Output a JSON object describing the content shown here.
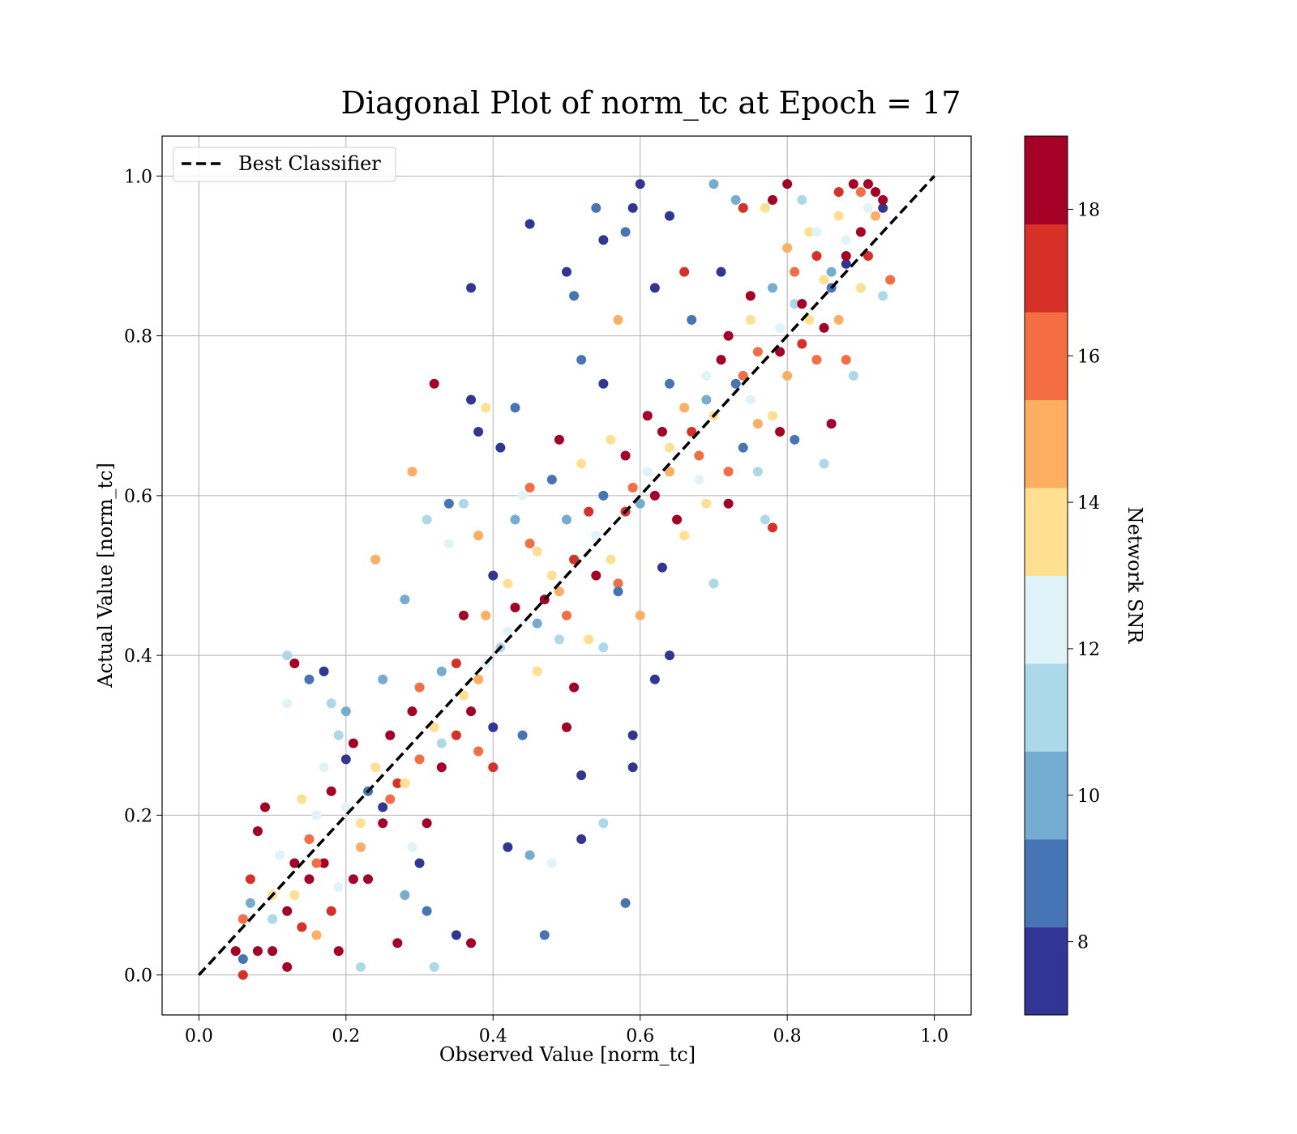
{
  "chart_data": {
    "type": "scatter",
    "title": "Diagonal Plot of norm_tc at Epoch = 17",
    "xlabel": "Observed Value [norm_tc]",
    "ylabel": "Actual Value [norm_tc]",
    "xlim": [
      -0.05,
      1.05
    ],
    "ylim": [
      -0.05,
      1.05
    ],
    "xticks": [
      "0.0",
      "0.2",
      "0.4",
      "0.6",
      "0.8",
      "1.0"
    ],
    "yticks": [
      "0.0",
      "0.2",
      "0.4",
      "0.6",
      "0.8",
      "1.0"
    ],
    "grid": true,
    "legend": {
      "position": "top-left",
      "label": "Best Classifier"
    },
    "reference_line": {
      "style": "dashed",
      "color": "#000000",
      "x": [
        0,
        1
      ],
      "y": [
        0,
        1
      ]
    },
    "colorbar": {
      "label": "Network SNR",
      "range": [
        7,
        19
      ],
      "ticks": [
        "8",
        "10",
        "12",
        "14",
        "16",
        "18"
      ],
      "colors": [
        "#313695",
        "#4575b4",
        "#74add1",
        "#abd9e9",
        "#e0f3f8",
        "#fee090",
        "#fdae61",
        "#f46d43",
        "#d73027",
        "#a50026"
      ]
    },
    "points_note": "representative sample of scattered points",
    "points": [
      [
        0.06,
        0.0,
        17
      ],
      [
        0.06,
        0.02,
        9
      ],
      [
        0.05,
        0.03,
        19
      ],
      [
        0.06,
        0.07,
        16
      ],
      [
        0.07,
        0.12,
        17
      ],
      [
        0.08,
        0.18,
        19
      ],
      [
        0.09,
        0.21,
        18
      ],
      [
        0.07,
        0.09,
        10
      ],
      [
        0.08,
        0.03,
        19
      ],
      [
        0.1,
        0.03,
        19
      ],
      [
        0.1,
        0.1,
        14
      ],
      [
        0.11,
        0.15,
        12
      ],
      [
        0.12,
        0.08,
        18
      ],
      [
        0.12,
        0.01,
        19
      ],
      [
        0.13,
        0.14,
        19
      ],
      [
        0.13,
        0.39,
        18
      ],
      [
        0.12,
        0.4,
        11
      ],
      [
        0.14,
        0.06,
        17
      ],
      [
        0.15,
        0.12,
        19
      ],
      [
        0.15,
        0.17,
        16
      ],
      [
        0.16,
        0.05,
        15
      ],
      [
        0.16,
        0.2,
        12
      ],
      [
        0.17,
        0.38,
        8
      ],
      [
        0.17,
        0.14,
        18
      ],
      [
        0.18,
        0.08,
        17
      ],
      [
        0.18,
        0.23,
        19
      ],
      [
        0.19,
        0.03,
        18
      ],
      [
        0.19,
        0.3,
        11
      ],
      [
        0.2,
        0.27,
        8
      ],
      [
        0.2,
        0.21,
        12
      ],
      [
        0.21,
        0.12,
        19
      ],
      [
        0.21,
        0.29,
        19
      ],
      [
        0.22,
        0.01,
        11
      ],
      [
        0.23,
        0.23,
        9
      ],
      [
        0.23,
        0.12,
        19
      ],
      [
        0.24,
        0.26,
        13
      ],
      [
        0.25,
        0.21,
        8
      ],
      [
        0.25,
        0.37,
        10
      ],
      [
        0.26,
        0.3,
        19
      ],
      [
        0.27,
        0.04,
        19
      ],
      [
        0.27,
        0.24,
        17
      ],
      [
        0.28,
        0.1,
        10
      ],
      [
        0.29,
        0.33,
        19
      ],
      [
        0.29,
        0.63,
        15
      ],
      [
        0.3,
        0.14,
        8
      ],
      [
        0.3,
        0.36,
        16
      ],
      [
        0.31,
        0.19,
        19
      ],
      [
        0.31,
        0.08,
        9
      ],
      [
        0.32,
        0.74,
        19
      ],
      [
        0.32,
        0.01,
        11
      ],
      [
        0.33,
        0.26,
        18
      ],
      [
        0.33,
        0.38,
        10
      ],
      [
        0.34,
        0.59,
        9
      ],
      [
        0.35,
        0.05,
        8
      ],
      [
        0.35,
        0.3,
        17
      ],
      [
        0.36,
        0.45,
        19
      ],
      [
        0.36,
        0.59,
        11
      ],
      [
        0.37,
        0.86,
        8
      ],
      [
        0.37,
        0.72,
        8
      ],
      [
        0.37,
        0.04,
        18
      ],
      [
        0.38,
        0.28,
        16
      ],
      [
        0.38,
        0.68,
        8
      ],
      [
        0.39,
        0.39,
        12
      ],
      [
        0.39,
        0.71,
        13
      ],
      [
        0.4,
        0.26,
        17
      ],
      [
        0.4,
        0.5,
        8
      ],
      [
        0.41,
        0.66,
        8
      ],
      [
        0.42,
        0.16,
        8
      ],
      [
        0.42,
        0.43,
        12
      ],
      [
        0.43,
        0.57,
        10
      ],
      [
        0.43,
        0.71,
        9
      ],
      [
        0.44,
        0.3,
        9
      ],
      [
        0.45,
        0.15,
        10
      ],
      [
        0.45,
        0.94,
        8
      ],
      [
        0.45,
        0.61,
        16
      ],
      [
        0.46,
        0.53,
        13
      ],
      [
        0.47,
        0.47,
        19
      ],
      [
        0.47,
        0.05,
        9
      ],
      [
        0.48,
        0.62,
        9
      ],
      [
        0.48,
        0.14,
        12
      ],
      [
        0.49,
        0.67,
        18
      ],
      [
        0.5,
        0.88,
        8
      ],
      [
        0.5,
        0.45,
        16
      ],
      [
        0.51,
        0.85,
        9
      ],
      [
        0.51,
        0.36,
        19
      ],
      [
        0.52,
        0.17,
        8
      ],
      [
        0.52,
        0.25,
        8
      ],
      [
        0.52,
        0.77,
        9
      ],
      [
        0.53,
        0.58,
        17
      ],
      [
        0.54,
        0.96,
        9
      ],
      [
        0.54,
        0.5,
        19
      ],
      [
        0.55,
        0.74,
        8
      ],
      [
        0.55,
        0.92,
        8
      ],
      [
        0.55,
        0.19,
        11
      ],
      [
        0.56,
        0.67,
        13
      ],
      [
        0.57,
        0.49,
        16
      ],
      [
        0.57,
        0.82,
        15
      ],
      [
        0.58,
        0.93,
        9
      ],
      [
        0.58,
        0.09,
        9
      ],
      [
        0.58,
        0.65,
        19
      ],
      [
        0.59,
        0.26,
        8
      ],
      [
        0.59,
        0.3,
        8
      ],
      [
        0.59,
        0.96,
        8
      ],
      [
        0.6,
        0.99,
        8
      ],
      [
        0.6,
        0.59,
        10
      ],
      [
        0.61,
        0.7,
        18
      ],
      [
        0.62,
        0.37,
        8
      ],
      [
        0.62,
        0.86,
        8
      ],
      [
        0.63,
        0.68,
        19
      ],
      [
        0.64,
        0.95,
        8
      ],
      [
        0.64,
        0.4,
        8
      ],
      [
        0.64,
        0.74,
        9
      ],
      [
        0.65,
        0.57,
        18
      ],
      [
        0.66,
        0.88,
        17
      ],
      [
        0.67,
        0.82,
        9
      ],
      [
        0.68,
        0.62,
        12
      ],
      [
        0.68,
        0.65,
        16
      ],
      [
        0.69,
        0.72,
        10
      ],
      [
        0.7,
        0.99,
        10
      ],
      [
        0.7,
        0.49,
        11
      ],
      [
        0.71,
        0.88,
        8
      ],
      [
        0.71,
        0.77,
        19
      ],
      [
        0.72,
        0.59,
        18
      ],
      [
        0.73,
        0.97,
        10
      ],
      [
        0.74,
        0.75,
        16
      ],
      [
        0.74,
        0.96,
        17
      ],
      [
        0.75,
        0.72,
        12
      ],
      [
        0.75,
        0.85,
        19
      ],
      [
        0.76,
        0.69,
        15
      ],
      [
        0.77,
        0.57,
        11
      ],
      [
        0.77,
        0.96,
        14
      ],
      [
        0.78,
        0.56,
        17
      ],
      [
        0.78,
        0.97,
        19
      ],
      [
        0.79,
        0.68,
        18
      ],
      [
        0.79,
        0.78,
        18
      ],
      [
        0.8,
        0.99,
        19
      ],
      [
        0.8,
        0.91,
        15
      ],
      [
        0.81,
        0.67,
        9
      ],
      [
        0.81,
        0.84,
        11
      ],
      [
        0.82,
        0.97,
        11
      ],
      [
        0.82,
        0.79,
        17
      ],
      [
        0.83,
        0.93,
        14
      ],
      [
        0.84,
        0.9,
        17
      ],
      [
        0.84,
        0.77,
        16
      ],
      [
        0.85,
        0.64,
        11
      ],
      [
        0.85,
        0.81,
        18
      ],
      [
        0.86,
        0.69,
        19
      ],
      [
        0.86,
        0.86,
        9
      ],
      [
        0.87,
        0.98,
        17
      ],
      [
        0.87,
        0.82,
        15
      ],
      [
        0.88,
        0.89,
        8
      ],
      [
        0.88,
        0.77,
        16
      ],
      [
        0.89,
        0.75,
        11
      ],
      [
        0.89,
        0.99,
        19
      ],
      [
        0.9,
        0.93,
        18
      ],
      [
        0.9,
        0.86,
        13
      ],
      [
        0.91,
        0.96,
        12
      ],
      [
        0.91,
        0.99,
        19
      ],
      [
        0.92,
        0.98,
        18
      ],
      [
        0.92,
        0.95,
        15
      ],
      [
        0.93,
        0.85,
        11
      ],
      [
        0.93,
        0.96,
        8
      ],
      [
        0.93,
        0.97,
        19
      ],
      [
        0.94,
        0.87,
        16
      ],
      [
        0.12,
        0.34,
        12
      ],
      [
        0.15,
        0.37,
        9
      ],
      [
        0.18,
        0.34,
        11
      ],
      [
        0.24,
        0.52,
        15
      ],
      [
        0.28,
        0.47,
        10
      ],
      [
        0.31,
        0.57,
        11
      ],
      [
        0.34,
        0.54,
        12
      ],
      [
        0.38,
        0.55,
        15
      ],
      [
        0.4,
        0.31,
        8
      ],
      [
        0.44,
        0.6,
        12
      ],
      [
        0.46,
        0.38,
        13
      ],
      [
        0.49,
        0.42,
        11
      ],
      [
        0.5,
        0.31,
        18
      ],
      [
        0.53,
        0.42,
        14
      ],
      [
        0.55,
        0.41,
        11
      ],
      [
        0.57,
        0.48,
        9
      ],
      [
        0.6,
        0.45,
        15
      ],
      [
        0.63,
        0.51,
        8
      ],
      [
        0.66,
        0.55,
        14
      ],
      [
        0.69,
        0.59,
        13
      ],
      [
        0.72,
        0.63,
        16
      ],
      [
        0.74,
        0.66,
        9
      ],
      [
        0.76,
        0.63,
        11
      ],
      [
        0.78,
        0.7,
        14
      ],
      [
        0.8,
        0.75,
        15
      ],
      [
        0.83,
        0.82,
        14
      ],
      [
        0.86,
        0.88,
        10
      ],
      [
        0.88,
        0.92,
        12
      ],
      [
        0.91,
        0.9,
        17
      ],
      [
        0.14,
        0.22,
        14
      ],
      [
        0.17,
        0.26,
        12
      ],
      [
        0.2,
        0.33,
        10
      ],
      [
        0.22,
        0.19,
        13
      ],
      [
        0.26,
        0.22,
        16
      ],
      [
        0.29,
        0.16,
        12
      ],
      [
        0.32,
        0.31,
        14
      ],
      [
        0.35,
        0.39,
        17
      ],
      [
        0.37,
        0.33,
        19
      ],
      [
        0.39,
        0.45,
        15
      ],
      [
        0.42,
        0.49,
        14
      ],
      [
        0.45,
        0.54,
        16
      ],
      [
        0.48,
        0.5,
        13
      ],
      [
        0.5,
        0.57,
        10
      ],
      [
        0.52,
        0.64,
        14
      ],
      [
        0.55,
        0.6,
        9
      ],
      [
        0.58,
        0.58,
        17
      ],
      [
        0.61,
        0.63,
        12
      ],
      [
        0.64,
        0.66,
        13
      ],
      [
        0.66,
        0.71,
        15
      ],
      [
        0.69,
        0.75,
        12
      ],
      [
        0.72,
        0.8,
        18
      ],
      [
        0.75,
        0.82,
        13
      ],
      [
        0.78,
        0.86,
        10
      ],
      [
        0.81,
        0.88,
        16
      ],
      [
        0.84,
        0.93,
        12
      ],
      [
        0.87,
        0.95,
        14
      ],
      [
        0.9,
        0.98,
        16
      ],
      [
        0.1,
        0.07,
        11
      ],
      [
        0.13,
        0.1,
        13
      ],
      [
        0.16,
        0.14,
        16
      ],
      [
        0.19,
        0.11,
        12
      ],
      [
        0.22,
        0.16,
        15
      ],
      [
        0.25,
        0.19,
        18
      ],
      [
        0.28,
        0.24,
        13
      ],
      [
        0.3,
        0.27,
        16
      ],
      [
        0.33,
        0.29,
        11
      ],
      [
        0.36,
        0.35,
        13
      ],
      [
        0.38,
        0.37,
        15
      ],
      [
        0.41,
        0.41,
        11
      ],
      [
        0.43,
        0.46,
        18
      ],
      [
        0.46,
        0.44,
        10
      ],
      [
        0.49,
        0.48,
        15
      ],
      [
        0.51,
        0.52,
        17
      ],
      [
        0.54,
        0.55,
        12
      ],
      [
        0.56,
        0.52,
        14
      ],
      [
        0.59,
        0.61,
        16
      ],
      [
        0.62,
        0.6,
        18
      ],
      [
        0.64,
        0.63,
        15
      ],
      [
        0.67,
        0.68,
        17
      ],
      [
        0.7,
        0.7,
        14
      ],
      [
        0.73,
        0.74,
        9
      ],
      [
        0.76,
        0.78,
        16
      ],
      [
        0.79,
        0.81,
        12
      ],
      [
        0.82,
        0.84,
        19
      ],
      [
        0.85,
        0.87,
        13
      ],
      [
        0.88,
        0.9,
        18
      ]
    ]
  }
}
